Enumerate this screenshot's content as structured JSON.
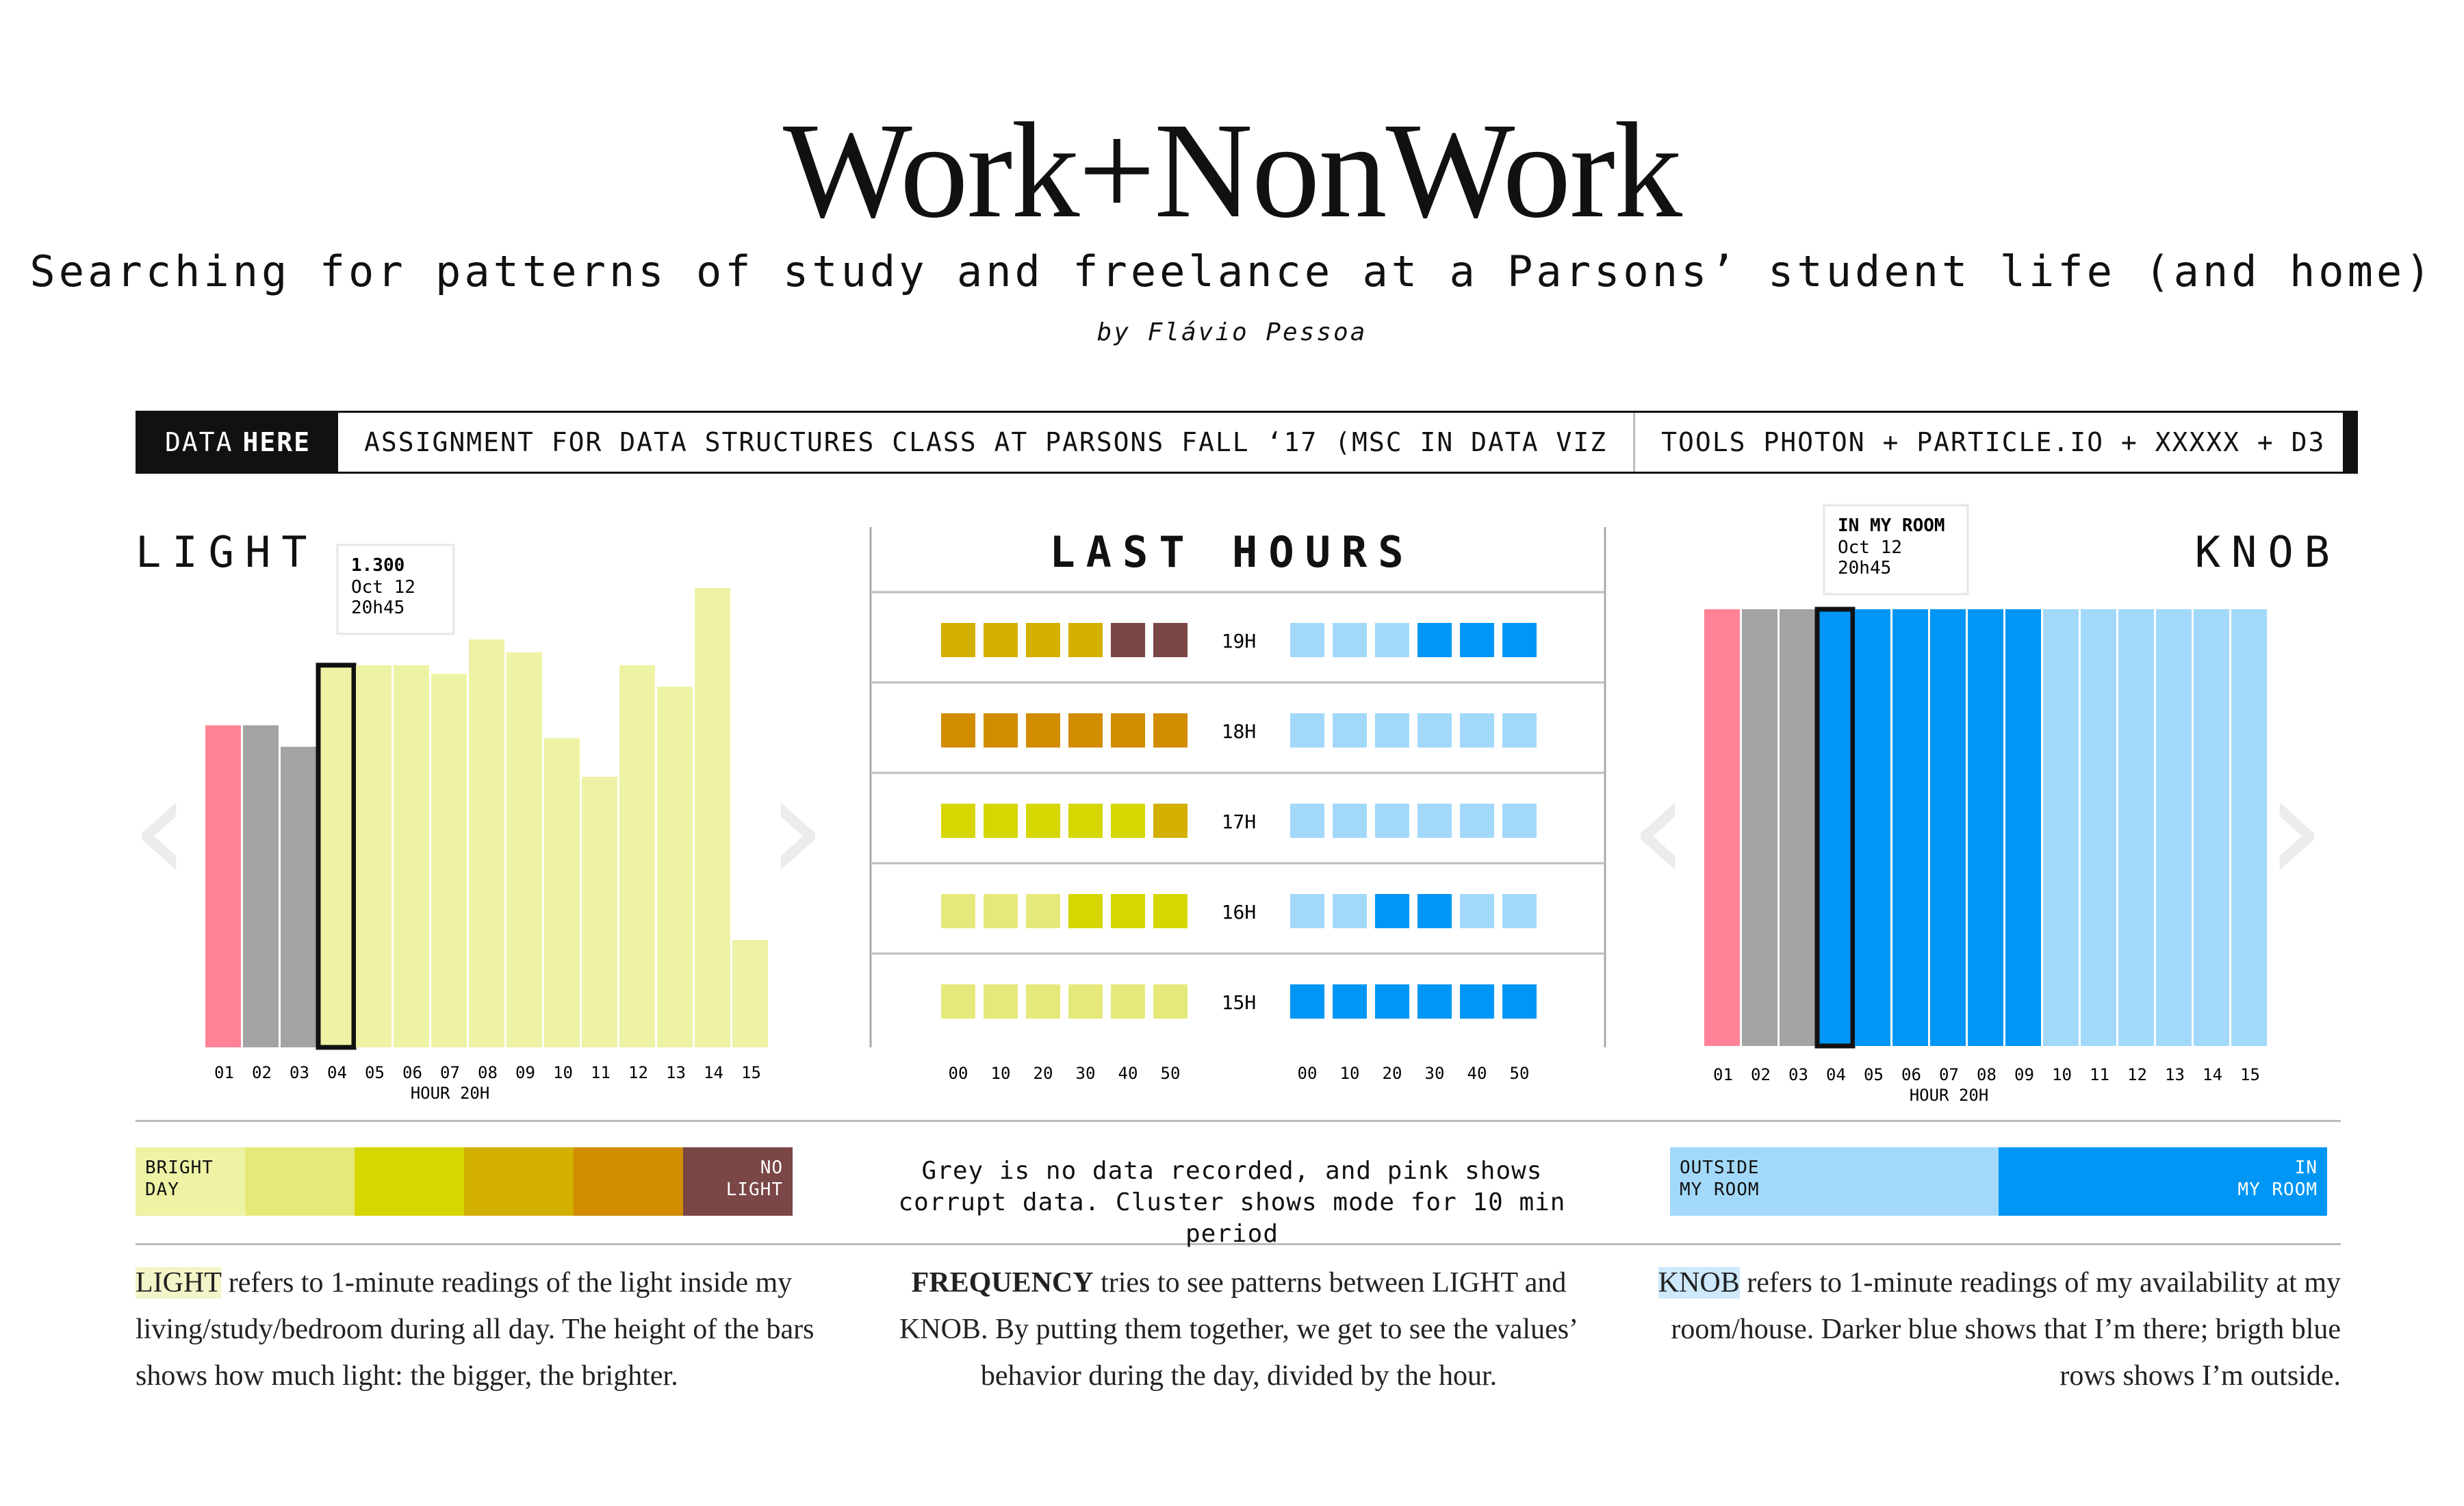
{
  "header": {
    "title": "Work+NonWork",
    "subtitle": "Searching for patterns of study and freelance at a Parsons’ student life (and home)",
    "author": "by Flávio Pessoa"
  },
  "infobar": {
    "data_label": "DATA",
    "here_label": "HERE",
    "assignment": "ASSIGNMENT FOR DATA STRUCTURES CLASS AT PARSONS FALL ‘17 (MSC IN DATA VIZ",
    "tools": "TOOLS PHOTON + PARTICLE.IO + XXXXX + D3"
  },
  "sections": {
    "light": "LIGHT",
    "last_hours": "LAST HOURS",
    "knob": "KNOB"
  },
  "colors": {
    "pink": "#ff8297",
    "grey": "#a3a3a3",
    "light_pale": "#eef2a4",
    "knob_dark": "#0096f5",
    "knob_light": "#a2d9fb",
    "lvl_bright": "#eef2a4",
    "lvl_2": "#e6e97a",
    "lvl_3": "#d6d700",
    "lvl_4": "#d4b000",
    "lvl_5": "#d18c00",
    "lvl_nolight": "#7a4646"
  },
  "chart_data": [
    {
      "type": "bar",
      "name": "LIGHT",
      "categories": [
        "01",
        "02",
        "03",
        "04",
        "05",
        "06",
        "07",
        "08",
        "09",
        "10",
        "11",
        "12",
        "13",
        "14",
        "15"
      ],
      "values": [
        0.75,
        0.75,
        0.7,
        0.89,
        0.89,
        0.89,
        0.87,
        0.95,
        0.92,
        0.72,
        0.63,
        0.89,
        0.84,
        1.07,
        0.25
      ],
      "status": [
        "corrupt",
        "no-data",
        "no-data",
        "ok",
        "ok",
        "ok",
        "ok",
        "ok",
        "ok",
        "ok",
        "ok",
        "ok",
        "ok",
        "ok",
        "ok"
      ],
      "highlight_index": 3,
      "xlabel": "HOUR 20H",
      "tooltip": {
        "value": "1.300",
        "date": "Oct 12",
        "time": "20h45"
      }
    },
    {
      "type": "heatmap",
      "name": "LAST HOURS",
      "x": [
        "00",
        "10",
        "20",
        "30",
        "40",
        "50"
      ],
      "rows": [
        {
          "hour": "19H",
          "light": [
            4,
            4,
            4,
            4,
            6,
            6
          ],
          "knob": [
            0,
            0,
            0,
            1,
            1,
            1
          ]
        },
        {
          "hour": "18H",
          "light": [
            5,
            5,
            5,
            5,
            5,
            5
          ],
          "knob": [
            0,
            0,
            0,
            0,
            0,
            0
          ]
        },
        {
          "hour": "17H",
          "light": [
            3,
            3,
            3,
            3,
            3,
            4
          ],
          "knob": [
            0,
            0,
            0,
            0,
            0,
            0
          ]
        },
        {
          "hour": "16H",
          "light": [
            2,
            2,
            2,
            3,
            3,
            3
          ],
          "knob": [
            0,
            0,
            1,
            1,
            0,
            0
          ]
        },
        {
          "hour": "15H",
          "light": [
            2,
            2,
            2,
            2,
            2,
            2
          ],
          "knob": [
            1,
            1,
            1,
            1,
            1,
            1
          ]
        }
      ]
    },
    {
      "type": "bar",
      "name": "KNOB",
      "categories": [
        "01",
        "02",
        "03",
        "04",
        "05",
        "06",
        "07",
        "08",
        "09",
        "10",
        "11",
        "12",
        "13",
        "14",
        "15"
      ],
      "status": [
        "corrupt",
        "no-data",
        "no-data",
        "in",
        "in",
        "in",
        "in",
        "in",
        "in",
        "out",
        "out",
        "out",
        "out",
        "out",
        "out"
      ],
      "highlight_index": 3,
      "xlabel": "HOUR 20H",
      "tooltip": {
        "value": "IN MY ROOM",
        "date": "Oct 12",
        "time": "20h45"
      }
    }
  ],
  "legends": {
    "light": [
      {
        "label": "BRIGHT DAY",
        "color": "#eef2a4"
      },
      {
        "label": "",
        "color": "#e6e97a"
      },
      {
        "label": "",
        "color": "#d6d700"
      },
      {
        "label": "",
        "color": "#d4b000"
      },
      {
        "label": "",
        "color": "#d18c00"
      },
      {
        "label": "NO LIGHT",
        "color": "#7a4646"
      }
    ],
    "light_left_1": "BRIGHT",
    "light_left_2": "DAY",
    "light_right_1": "NO",
    "light_right_2": "LIGHT",
    "knob_left_1": "OUTSIDE",
    "knob_left_2": "MY ROOM",
    "knob_right_1": "IN",
    "knob_right_2": "MY ROOM",
    "center_note": "Grey is no data recorded, and pink shows corrupt data. Cluster shows mode for 10 min period"
  },
  "descriptions": {
    "light_key": "LIGHT",
    "light_rest": " refers to 1-minute readings of the light inside my living/study/bedroom during all day. The height of the bars shows how much light: the bigger, the brighter.",
    "freq_key": "FREQUENCY",
    "freq_rest": " tries to see patterns between LIGHT and KNOB. By putting them together, we get to see the values’ behavior during the day, divided by the hour.",
    "knob_key": "KNOB",
    "knob_rest": " refers to 1-minute readings of my availability at my room/house. Darker blue shows that I’m there; brigth blue rows shows I’m outside."
  }
}
